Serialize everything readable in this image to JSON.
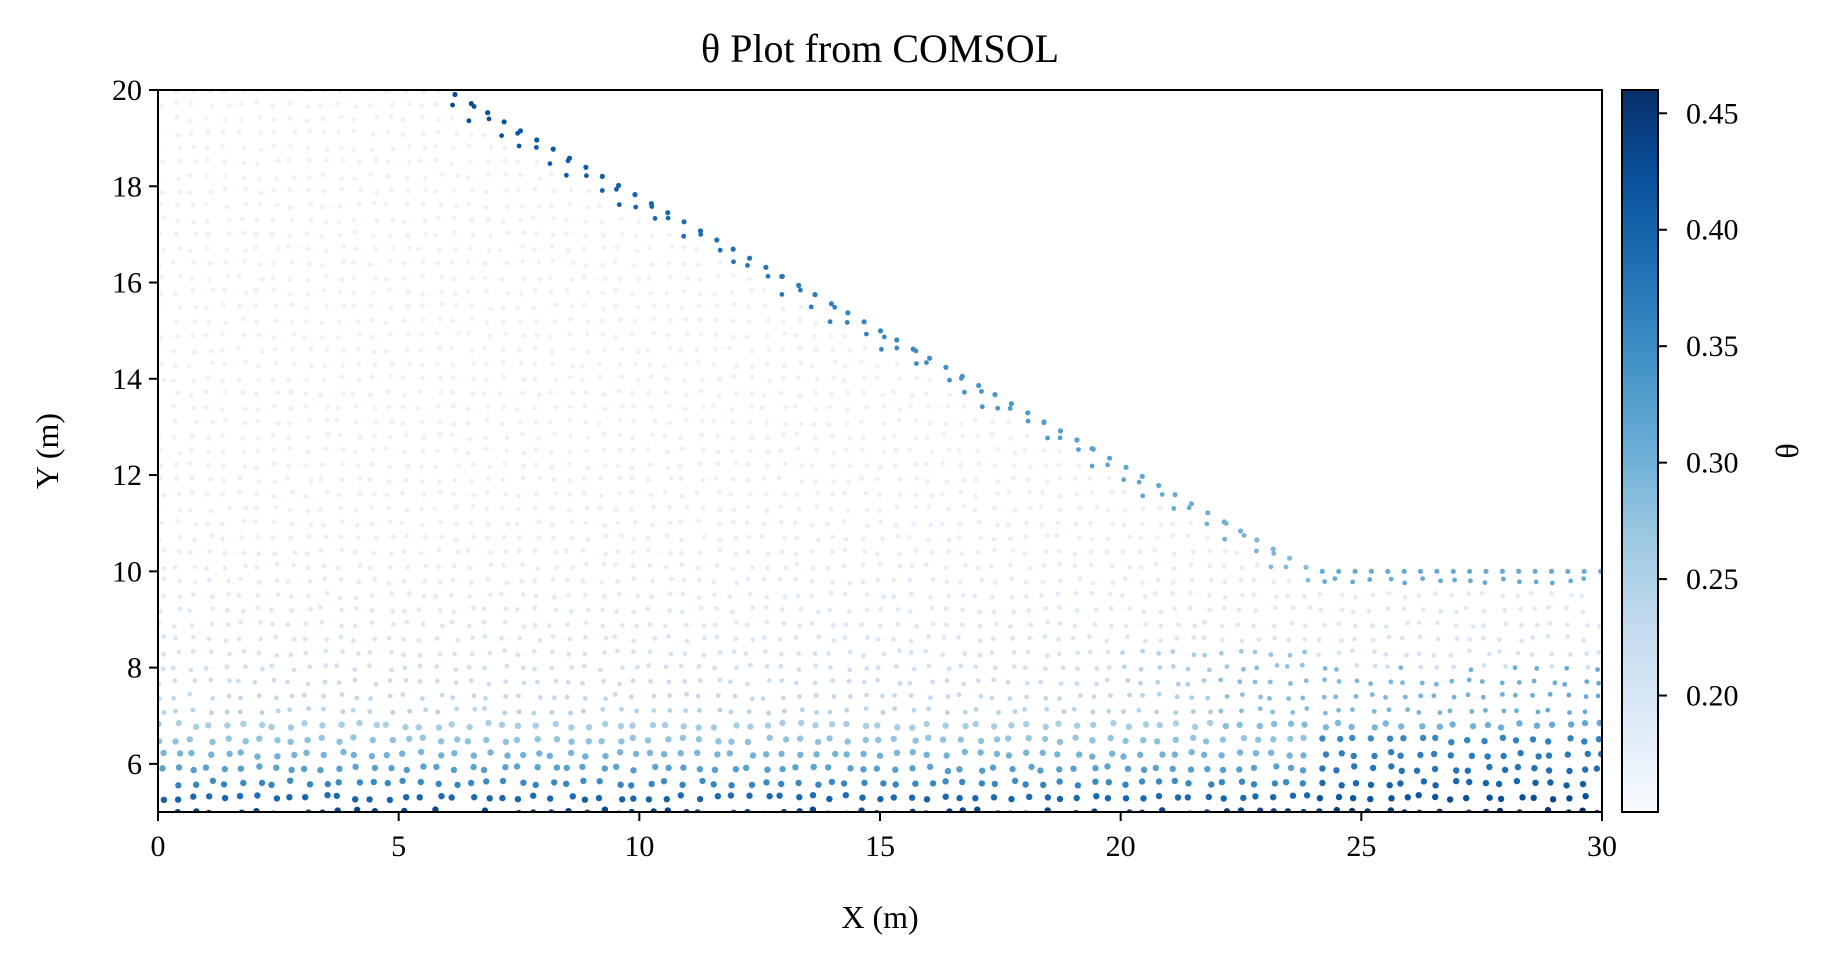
{
  "chart_data": {
    "type": "scatter",
    "title": "θ Plot from COMSOL",
    "xlabel": "X (m)",
    "ylabel": "Y (m)",
    "colorbar_label": "θ",
    "xlim": [
      0,
      30
    ],
    "ylim": [
      5,
      20
    ],
    "x_ticks": [
      "0",
      "5",
      "10",
      "15",
      "20",
      "25",
      "30"
    ],
    "y_ticks": [
      "6",
      "8",
      "10",
      "12",
      "14",
      "16",
      "18",
      "20"
    ],
    "colorbar_range": [
      0.15,
      0.46
    ],
    "colorbar_ticks": [
      "0.20",
      "0.25",
      "0.30",
      "0.35",
      "0.40",
      "0.45"
    ],
    "colormap": "Blues",
    "colormap_low": "#f7fbff",
    "colormap_high": "#08306b",
    "grid": false,
    "domain_outline": [
      [
        0,
        20
      ],
      [
        6,
        20
      ],
      [
        24,
        10
      ],
      [
        30,
        10
      ],
      [
        30,
        5
      ],
      [
        0,
        5
      ]
    ],
    "series": [
      {
        "x": 0.5,
        "y": 19,
        "theta": 0.16
      },
      {
        "x": 3,
        "y": 17,
        "theta": 0.18
      },
      {
        "x": 5,
        "y": 14,
        "theta": 0.2
      },
      {
        "x": 10,
        "y": 12,
        "theta": 0.2
      },
      {
        "x": 2,
        "y": 8,
        "theta": 0.25
      },
      {
        "x": 5,
        "y": 5.5,
        "theta": 0.42
      },
      {
        "x": 13,
        "y": 16,
        "theta": 0.42
      },
      {
        "x": 20,
        "y": 11.5,
        "theta": 0.3
      },
      {
        "x": 26,
        "y": 9,
        "theta": 0.18
      },
      {
        "x": 26,
        "y": 7,
        "theta": 0.3
      },
      {
        "x": 29.5,
        "y": 5.5,
        "theta": 0.45
      }
    ]
  }
}
